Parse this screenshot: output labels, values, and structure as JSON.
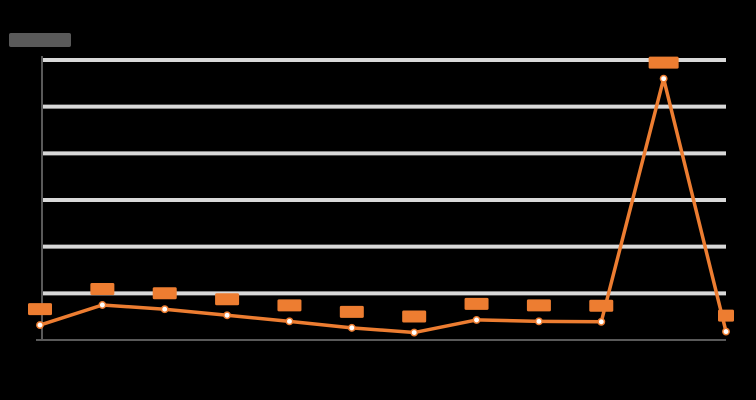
{
  "chart_data": {
    "type": "line",
    "title": "",
    "xlabel": "",
    "ylabel": "",
    "categories": [
      "",
      "",
      "",
      "",
      "",
      "",
      "",
      "",
      "",
      "",
      "",
      ""
    ],
    "series": [
      {
        "values": [
          320,
          750,
          660,
          530,
          400,
          260,
          160,
          430,
          400,
          390,
          5600,
          180
        ],
        "value_labels": [
          "",
          "",
          "",
          "",
          "",
          "",
          "",
          "",
          "",
          "",
          "",
          ""
        ]
      }
    ],
    "ylim": [
      0,
      6000
    ],
    "yticks": [
      0,
      1000,
      2000,
      3000,
      4000,
      5000,
      6000
    ],
    "ytick_labels": [
      "",
      "",
      "",
      "",
      "",
      "",
      ""
    ],
    "grid": true,
    "legend": "none",
    "colors": {
      "background": "#000000",
      "gridline": "#d9d9d9",
      "axis": "#595959",
      "line": "#ed7d31",
      "label_box": "#ed7d31",
      "marker_fill": "#ffffff",
      "ylabel_box": "#595959"
    }
  }
}
